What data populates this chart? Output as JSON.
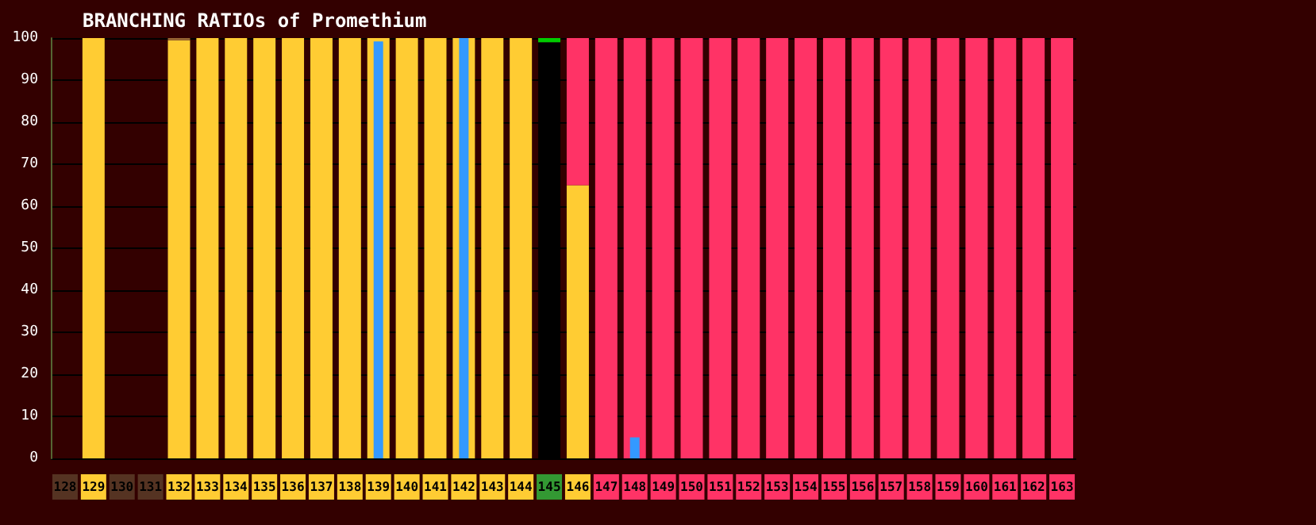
{
  "chart_data": {
    "type": "bar",
    "title": "BRANCHING RATIOs of Promethium",
    "categories": [
      "128",
      "129",
      "130",
      "131",
      "132",
      "133",
      "134",
      "135",
      "136",
      "137",
      "138",
      "139",
      "140",
      "141",
      "142",
      "143",
      "144",
      "145",
      "146",
      "147",
      "148",
      "149",
      "150",
      "151",
      "152",
      "153",
      "154",
      "155",
      "156",
      "157",
      "158",
      "159",
      "160",
      "161",
      "162",
      "163"
    ],
    "series": [
      {
        "color": "#ffcc33",
        "values": [
          null,
          100,
          null,
          null,
          99.5,
          100,
          100,
          100,
          100,
          100,
          100,
          100,
          100,
          100,
          100,
          100,
          100,
          null,
          65,
          null,
          null,
          null,
          null,
          null,
          null,
          null,
          null,
          null,
          null,
          null,
          null,
          null,
          null,
          null,
          null,
          null
        ]
      },
      {
        "color": "#996633",
        "base": [
          null,
          null,
          null,
          null,
          99.5,
          null,
          null,
          null,
          null,
          null,
          null,
          null,
          null,
          null,
          null,
          null,
          null,
          null,
          null,
          null,
          null,
          null,
          null,
          null,
          null,
          null,
          null,
          null,
          null,
          null,
          null,
          null,
          null,
          null,
          null,
          null
        ],
        "values": [
          null,
          null,
          null,
          null,
          0.5,
          null,
          null,
          null,
          null,
          null,
          null,
          null,
          null,
          null,
          null,
          null,
          null,
          null,
          null,
          null,
          null,
          null,
          null,
          null,
          null,
          null,
          null,
          null,
          null,
          null,
          null,
          null,
          null,
          null,
          null,
          null
        ]
      },
      {
        "color": "#ff3366",
        "base": [
          null,
          null,
          null,
          null,
          null,
          null,
          null,
          null,
          null,
          null,
          null,
          null,
          null,
          null,
          null,
          null,
          null,
          null,
          65,
          0,
          0,
          0,
          0,
          0,
          0,
          0,
          0,
          0,
          0,
          0,
          0,
          0,
          0,
          0,
          0,
          0
        ],
        "values": [
          null,
          null,
          null,
          null,
          null,
          null,
          null,
          null,
          null,
          null,
          null,
          null,
          null,
          null,
          null,
          null,
          null,
          null,
          35,
          100,
          100,
          100,
          100,
          100,
          100,
          100,
          100,
          100,
          100,
          100,
          100,
          100,
          100,
          100,
          100,
          100
        ]
      },
      {
        "color": "#000000",
        "values": [
          null,
          null,
          null,
          null,
          null,
          null,
          null,
          null,
          null,
          null,
          null,
          null,
          null,
          null,
          null,
          null,
          null,
          99,
          null,
          null,
          null,
          null,
          null,
          null,
          null,
          null,
          null,
          null,
          null,
          null,
          null,
          null,
          null,
          null,
          null,
          null
        ]
      },
      {
        "color": "#00cc00",
        "base": [
          null,
          null,
          null,
          null,
          null,
          null,
          null,
          null,
          null,
          null,
          null,
          null,
          null,
          null,
          null,
          null,
          null,
          99,
          null,
          null,
          null,
          null,
          null,
          null,
          null,
          null,
          null,
          null,
          null,
          null,
          null,
          null,
          null,
          null,
          null,
          null
        ],
        "values": [
          null,
          null,
          null,
          null,
          null,
          null,
          null,
          null,
          null,
          null,
          null,
          null,
          null,
          null,
          null,
          null,
          null,
          1,
          null,
          null,
          null,
          null,
          null,
          null,
          null,
          null,
          null,
          null,
          null,
          null,
          null,
          null,
          null,
          null,
          null,
          null
        ]
      },
      {
        "type": "bar",
        "color": "#3399ff",
        "values": [
          null,
          null,
          null,
          null,
          null,
          null,
          null,
          null,
          null,
          null,
          null,
          99.2,
          null,
          null,
          100,
          null,
          null,
          null,
          null,
          null,
          5,
          null,
          null,
          null,
          null,
          null,
          null,
          null,
          null,
          null,
          null,
          null,
          null,
          null,
          null,
          null
        ]
      }
    ],
    "ylim": [
      0,
      100
    ],
    "yticks": [
      0,
      10,
      20,
      30,
      40,
      50,
      60,
      70,
      80,
      90,
      100
    ],
    "grid": "y"
  }
}
